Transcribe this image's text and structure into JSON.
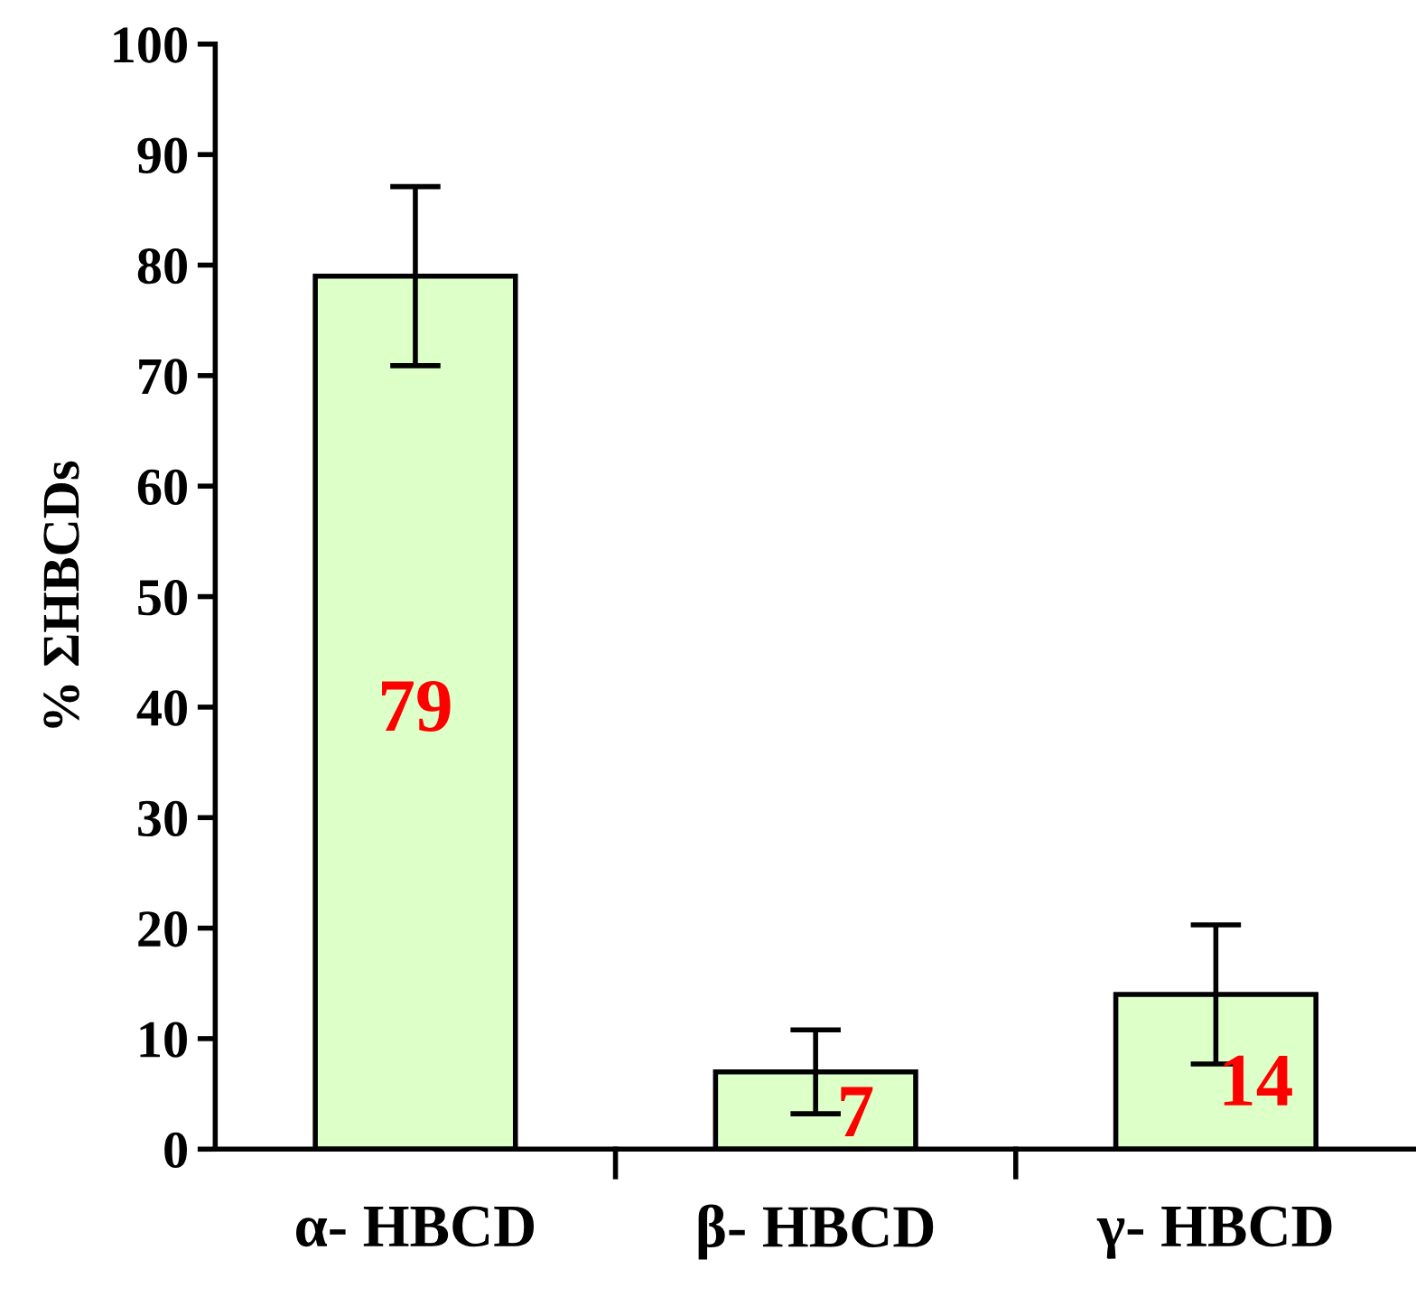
{
  "chart_data": {
    "type": "bar",
    "ylabel": "% ΣHBCDs",
    "categories": [
      "α- HBCD",
      "β- HBCD",
      "γ- HBCD"
    ],
    "values": [
      79,
      7,
      14
    ],
    "errors": [
      8.1,
      3.8,
      6.3
    ],
    "color": "#ddffc8",
    "data_labels": true,
    "ylim": [
      0,
      100
    ],
    "yticks": [
      0,
      10,
      20,
      30,
      40,
      50,
      60,
      70,
      80,
      90,
      100
    ],
    "grid": false,
    "legend": false
  }
}
